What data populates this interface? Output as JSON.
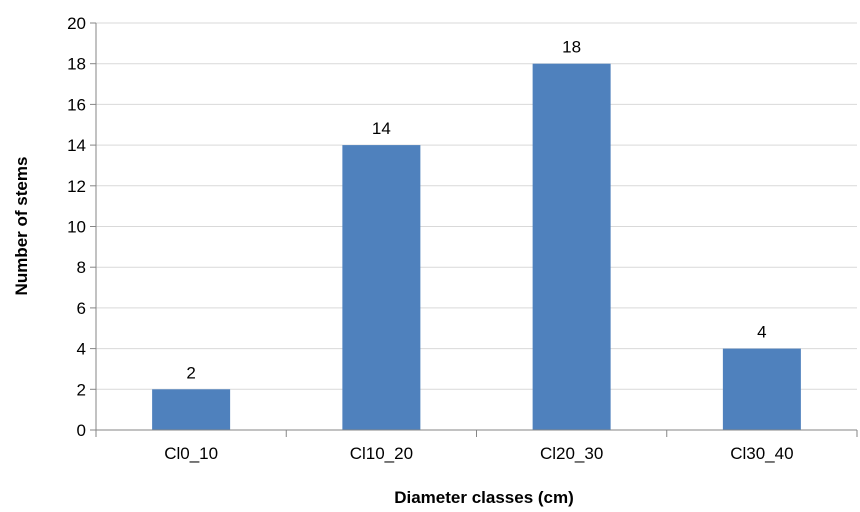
{
  "chart_data": {
    "type": "bar",
    "categories": [
      "Cl0_10",
      "Cl10_20",
      "Cl20_30",
      "Cl30_40"
    ],
    "values": [
      2,
      14,
      18,
      4
    ],
    "data_labels": [
      "2",
      "14",
      "18",
      "4"
    ],
    "title": "",
    "xlabel": "Diameter classes (cm)",
    "ylabel": "Number of stems",
    "ylim": [
      0,
      20
    ],
    "yticks": [
      0,
      2,
      4,
      6,
      8,
      10,
      12,
      14,
      16,
      18,
      20
    ],
    "grid": true,
    "legend": "none",
    "bar_color": "#4f81bd"
  }
}
